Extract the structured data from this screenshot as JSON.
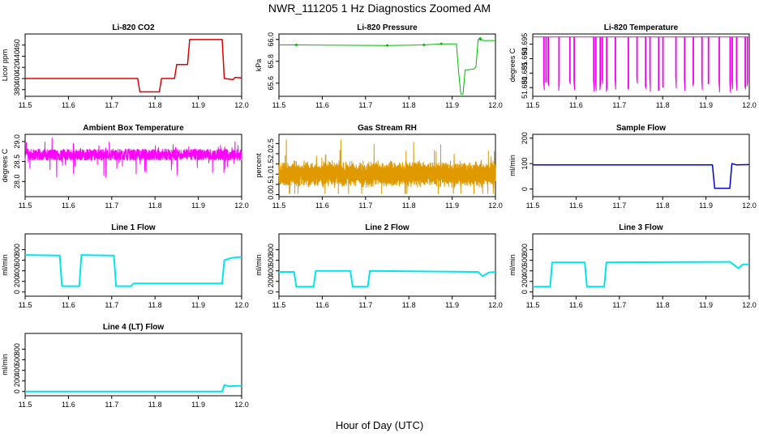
{
  "figure": {
    "title": "NWR_111205  1 Hz Diagnostics Zoomed AM",
    "xlabel": "Hour of Day (UTC)"
  },
  "chart_data": [
    {
      "type": "line",
      "title": "Li-820 CO2",
      "ylabel": "Licor ppm",
      "color": "#dd0000",
      "xlim": [
        11.5,
        12.0
      ],
      "ylim": [
        368,
        480
      ],
      "yticks": [
        380,
        400,
        420,
        440,
        460
      ],
      "lw": 1.5,
      "xticks": [
        11.5,
        11.6,
        11.7,
        11.8,
        11.9,
        12.0
      ],
      "series": [
        {
          "x": [
            11.5,
            11.76,
            11.765,
            11.81,
            11.815,
            11.845,
            11.85,
            11.875,
            11.88,
            11.955,
            11.96,
            11.98,
            11.985,
            12.0
          ],
          "y": [
            400,
            400,
            376,
            376,
            400,
            400,
            425,
            425,
            470,
            470,
            400,
            398,
            402,
            401
          ]
        }
      ]
    },
    {
      "type": "line",
      "title": "Li-820 Pressure",
      "ylabel": "kPa",
      "color": "#00bb00",
      "xlim": [
        11.5,
        12.0
      ],
      "ylim": [
        65.48,
        66.05
      ],
      "yticks": [
        65.6,
        65.8,
        66.0
      ],
      "yticklabels": [
        "65.6",
        "65.8",
        "66.0"
      ],
      "xticks": [
        11.5,
        11.6,
        11.7,
        11.8,
        11.9,
        12.0
      ],
      "series": [
        {
          "x": [
            11.5,
            11.54,
            11.75,
            11.835,
            11.875,
            11.91,
            11.915,
            11.92,
            11.925,
            11.93,
            11.95,
            11.955,
            11.96,
            11.965,
            11.97,
            12.0
          ],
          "y": [
            65.95,
            65.95,
            65.945,
            65.95,
            65.96,
            65.96,
            65.7,
            65.5,
            65.5,
            65.72,
            65.73,
            65.75,
            66.0,
            66.02,
            65.99,
            65.99
          ]
        }
      ]
    },
    {
      "type": "line",
      "title": "Li-820 Temperature",
      "ylabel": "degrees C",
      "color": "#ee00ee",
      "xlim": [
        11.5,
        12.0
      ],
      "ylim": [
        51.677,
        51.6985
      ],
      "yticks": [
        51.68,
        51.685,
        51.69,
        51.695
      ],
      "yticklabels": [
        "51.680",
        "51.685",
        "51.690",
        "51.695"
      ],
      "xticks": [
        11.5,
        11.6,
        11.7,
        11.8,
        11.9,
        12.0
      ],
      "series": [
        {
          "x": [],
          "y": []
        }
      ]
    },
    {
      "type": "line",
      "title": "Ambient Box Temperature",
      "ylabel": "degrees C",
      "color": "#ff00ff",
      "xlim": [
        11.5,
        12.0
      ],
      "ylim": [
        27.62,
        29.18
      ],
      "yticks": [
        28.0,
        28.5,
        29.0
      ],
      "yticklabels": [
        "28.0",
        "28.5",
        "29.0"
      ],
      "xticks": [
        11.5,
        11.6,
        11.7,
        11.8,
        11.9,
        12.0
      ],
      "series": [
        {
          "x": [],
          "y": []
        }
      ]
    },
    {
      "type": "line",
      "title": "Gas Stream RH",
      "ylabel": "percent",
      "color": "#e09a00",
      "xlim": [
        11.5,
        12.0
      ],
      "ylim": [
        -0.1,
        2.95
      ],
      "yticks": [
        0.0,
        0.5,
        1.0,
        1.5,
        2.0,
        2.5
      ],
      "yticklabels": [
        "0.0",
        "0.5",
        "1.0",
        "1.5",
        "2.0",
        "2.5"
      ],
      "xticks": [
        11.5,
        11.6,
        11.7,
        11.8,
        11.9,
        12.0
      ],
      "series": [
        {
          "x": [],
          "y": []
        }
      ]
    },
    {
      "type": "line",
      "title": "Sample Flow",
      "ylabel": "ml/min",
      "color": "#0000cc",
      "xlim": [
        11.5,
        12.0
      ],
      "ylim": [
        -30,
        215
      ],
      "yticks": [
        0,
        100,
        200
      ],
      "lw": 1.5,
      "xticks": [
        11.5,
        11.6,
        11.7,
        11.8,
        11.9,
        12.0
      ],
      "series": [
        {
          "x": [
            11.5,
            11.915,
            11.92,
            11.955,
            11.96,
            11.97,
            12.0
          ],
          "y": [
            95,
            95,
            3,
            3,
            100,
            95,
            96
          ]
        }
      ]
    },
    {
      "type": "line",
      "title": "Line 1 Flow",
      "ylabel": "ml/min",
      "color": "#00e5ee",
      "xlim": [
        11.5,
        12.0
      ],
      "ylim": [
        -80,
        1100
      ],
      "yticks": [
        0,
        200,
        400,
        600,
        800
      ],
      "lw": 2,
      "xticks": [
        11.5,
        11.6,
        11.7,
        11.8,
        11.9,
        12.0
      ],
      "series": [
        {
          "x": [
            11.5,
            11.58,
            11.585,
            11.625,
            11.63,
            11.705,
            11.71,
            11.745,
            11.75,
            11.955,
            11.96,
            11.975,
            11.99,
            12.0
          ],
          "y": [
            700,
            690,
            110,
            110,
            700,
            690,
            110,
            110,
            160,
            160,
            600,
            640,
            660,
            660
          ]
        }
      ]
    },
    {
      "type": "line",
      "title": "Line 2 Flow",
      "ylabel": "ml/min",
      "color": "#00e5ee",
      "xlim": [
        11.5,
        12.0
      ],
      "ylim": [
        -80,
        1100
      ],
      "yticks": [
        0,
        200,
        400,
        600,
        800
      ],
      "lw": 2,
      "xticks": [
        11.5,
        11.6,
        11.7,
        11.8,
        11.9,
        12.0
      ],
      "series": [
        {
          "x": [
            11.5,
            11.535,
            11.54,
            11.58,
            11.585,
            11.665,
            11.67,
            11.705,
            11.71,
            11.96,
            11.97,
            11.985,
            12.0
          ],
          "y": [
            380,
            380,
            100,
            100,
            400,
            400,
            100,
            100,
            400,
            380,
            300,
            370,
            380
          ]
        }
      ]
    },
    {
      "type": "line",
      "title": "Line 3 Flow",
      "ylabel": "ml/min",
      "color": "#00e5ee",
      "xlim": [
        11.5,
        12.0
      ],
      "ylim": [
        -80,
        1100
      ],
      "yticks": [
        0,
        200,
        400,
        600,
        800
      ],
      "lw": 2,
      "xticks": [
        11.5,
        11.6,
        11.7,
        11.8,
        11.9,
        12.0
      ],
      "series": [
        {
          "x": [
            11.5,
            11.54,
            11.545,
            11.62,
            11.625,
            11.665,
            11.67,
            11.955,
            11.975,
            11.985,
            12.0
          ],
          "y": [
            100,
            100,
            560,
            560,
            100,
            100,
            560,
            570,
            450,
            520,
            520
          ]
        }
      ]
    },
    {
      "type": "line",
      "title": "Line 4 (LT) Flow",
      "ylabel": "ml/min",
      "color": "#00e5ee",
      "xlim": [
        11.5,
        12.0
      ],
      "ylim": [
        -80,
        1100
      ],
      "yticks": [
        0,
        200,
        400,
        600,
        800
      ],
      "lw": 2,
      "xticks": [
        11.5,
        11.6,
        11.7,
        11.8,
        11.9,
        12.0
      ],
      "series": [
        {
          "x": [
            11.5,
            11.955,
            11.96,
            11.97,
            12.0
          ],
          "y": [
            0,
            0,
            120,
            100,
            110
          ]
        }
      ]
    }
  ]
}
